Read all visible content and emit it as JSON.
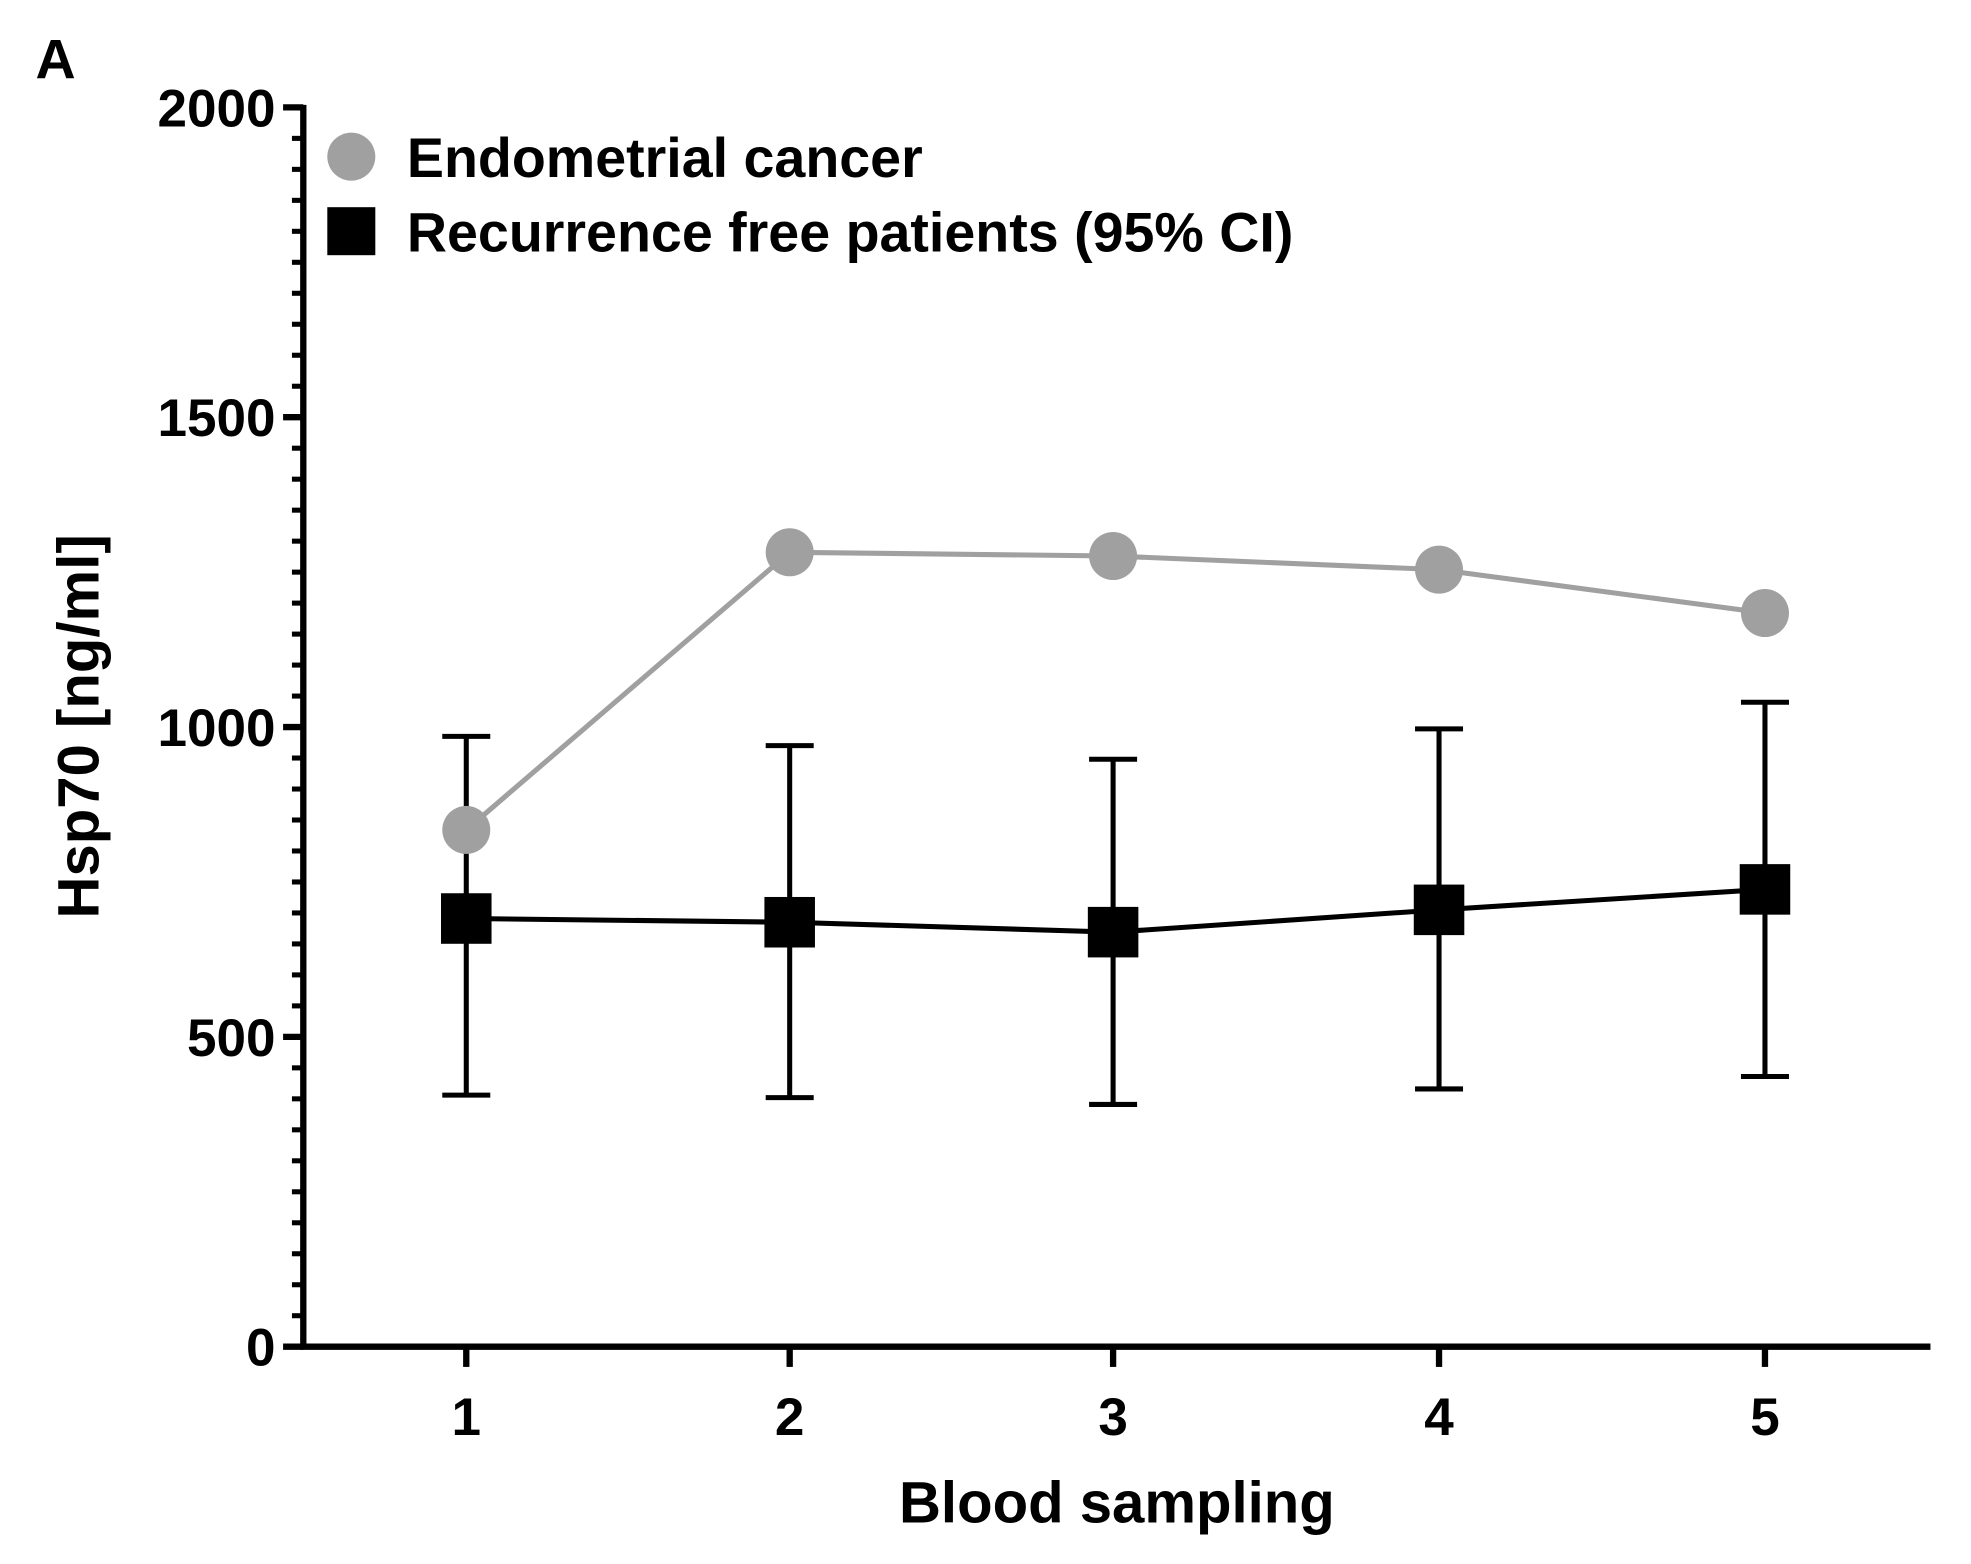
{
  "panel_label": "A",
  "chart_data": {
    "type": "line",
    "title": "",
    "xlabel": "Blood sampling",
    "ylabel": "Hsp70 [ng/ml]",
    "x": [
      1,
      2,
      3,
      4,
      5
    ],
    "x_tick_labels": [
      "1",
      "2",
      "3",
      "4",
      "5"
    ],
    "xlim": [
      0.5,
      5.5
    ],
    "ylim": [
      0,
      2000
    ],
    "y_ticks": [
      0,
      500,
      1000,
      1500,
      2000
    ],
    "y_tick_labels": [
      "0",
      "500",
      "1000",
      "1500",
      "2000"
    ],
    "y_minor_step": 50,
    "grid": false,
    "legend_position": "top-left",
    "series": [
      {
        "name": "Endometrial cancer",
        "marker": "circle",
        "color": "#a0a0a0",
        "values": [
          834,
          1282,
          1276,
          1254,
          1184
        ]
      },
      {
        "name": "Recurrence free patients (95% CI)",
        "marker": "square",
        "color": "#000000",
        "values": [
          691,
          685,
          669,
          705,
          738
        ],
        "ci_lower": [
          406,
          402,
          391,
          416,
          436
        ],
        "ci_upper": [
          985,
          970,
          948,
          997,
          1040
        ]
      }
    ]
  }
}
